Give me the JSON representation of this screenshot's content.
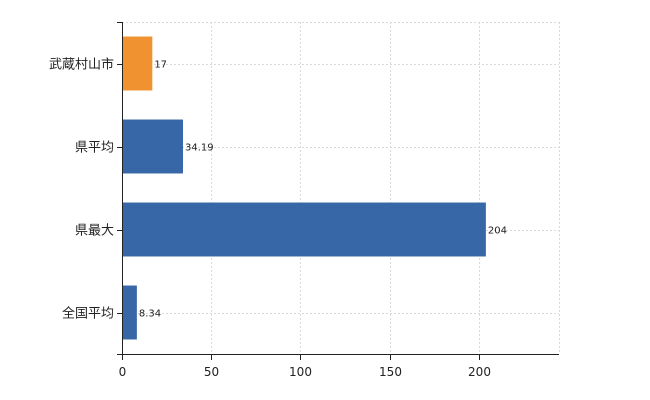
{
  "chart_data": {
    "type": "bar",
    "orientation": "horizontal",
    "categories": [
      "武蔵村山市",
      "県平均",
      "県最大",
      "全国平均"
    ],
    "values": [
      17,
      34.19,
      204,
      8.34
    ],
    "value_labels": [
      "17",
      "34.19",
      "204",
      "8.34"
    ],
    "bar_colors": [
      "#f0922f",
      "#3767a7",
      "#3767a7",
      "#3767a7"
    ],
    "xlim": [
      0,
      245
    ],
    "x_ticks": [
      0,
      50,
      100,
      150,
      200
    ],
    "x_tick_labels": [
      "0",
      "50",
      "100",
      "150",
      "200"
    ],
    "grid": true,
    "title": "",
    "xlabel": "",
    "ylabel": ""
  }
}
